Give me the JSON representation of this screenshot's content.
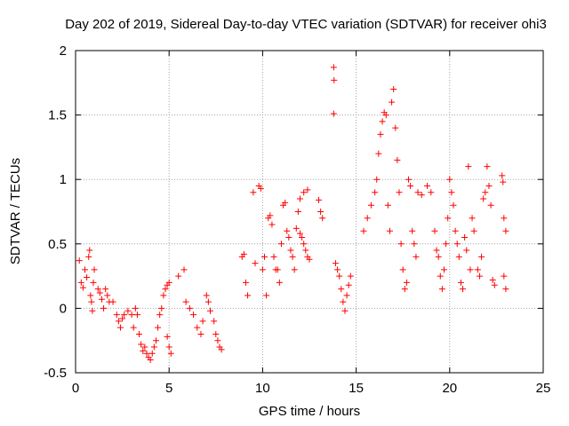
{
  "chart_data": {
    "type": "scatter",
    "title": "Day 202 of 2019, Sidereal Day-to-day VTEC variation (SDTVAR) for receiver ohi3",
    "xlabel": "GPS time / hours",
    "ylabel": "SDTVAR / TECUs",
    "xlim": [
      0,
      25
    ],
    "ylim": [
      -0.5,
      2
    ],
    "xticks": [
      0,
      5,
      10,
      15,
      20,
      25
    ],
    "xtick_labels": [
      "0",
      "5",
      "10",
      "15",
      "20",
      "25"
    ],
    "yticks": [
      -0.5,
      0,
      0.5,
      1,
      1.5,
      2
    ],
    "ytick_labels": [
      "-0.5",
      "0",
      "0.5",
      "1",
      "1.5",
      "2"
    ],
    "grid": true,
    "marker": "plus",
    "color": "#ff0000",
    "series": [
      {
        "name": "SDTVAR",
        "points": [
          [
            0.2,
            0.37
          ],
          [
            0.3,
            0.2
          ],
          [
            0.4,
            0.16
          ],
          [
            0.5,
            0.3
          ],
          [
            0.6,
            0.24
          ],
          [
            0.7,
            0.4
          ],
          [
            0.75,
            0.45
          ],
          [
            0.8,
            0.1
          ],
          [
            0.85,
            0.05
          ],
          [
            0.9,
            -0.02
          ],
          [
            0.95,
            0.2
          ],
          [
            1.0,
            0.3
          ],
          [
            1.2,
            0.15
          ],
          [
            1.3,
            0.12
          ],
          [
            1.4,
            0.07
          ],
          [
            1.5,
            0.0
          ],
          [
            1.6,
            0.15
          ],
          [
            1.7,
            0.1
          ],
          [
            1.8,
            0.05
          ],
          [
            2.0,
            0.05
          ],
          [
            2.2,
            -0.05
          ],
          [
            2.3,
            -0.1
          ],
          [
            2.4,
            -0.15
          ],
          [
            2.5,
            -0.08
          ],
          [
            2.6,
            -0.05
          ],
          [
            2.8,
            -0.02
          ],
          [
            3.0,
            -0.05
          ],
          [
            3.1,
            -0.15
          ],
          [
            3.2,
            0.0
          ],
          [
            3.3,
            -0.05
          ],
          [
            3.4,
            -0.2
          ],
          [
            3.5,
            -0.28
          ],
          [
            3.6,
            -0.33
          ],
          [
            3.7,
            -0.3
          ],
          [
            3.8,
            -0.35
          ],
          [
            3.9,
            -0.38
          ],
          [
            4.0,
            -0.4
          ],
          [
            4.1,
            -0.35
          ],
          [
            4.2,
            -0.3
          ],
          [
            4.3,
            -0.25
          ],
          [
            4.4,
            -0.15
          ],
          [
            4.5,
            -0.05
          ],
          [
            4.6,
            0.0
          ],
          [
            4.7,
            0.1
          ],
          [
            4.8,
            0.15
          ],
          [
            4.9,
            0.18
          ],
          [
            5.0,
            0.2
          ],
          [
            5.1,
            -0.35
          ],
          [
            5.0,
            -0.3
          ],
          [
            4.9,
            -0.22
          ],
          [
            5.5,
            0.25
          ],
          [
            5.8,
            0.3
          ],
          [
            5.9,
            0.05
          ],
          [
            6.1,
            0.0
          ],
          [
            6.3,
            -0.05
          ],
          [
            6.5,
            -0.15
          ],
          [
            6.7,
            -0.2
          ],
          [
            6.8,
            -0.1
          ],
          [
            7.0,
            0.1
          ],
          [
            7.1,
            0.05
          ],
          [
            7.2,
            -0.02
          ],
          [
            7.4,
            -0.1
          ],
          [
            7.5,
            -0.2
          ],
          [
            7.6,
            -0.25
          ],
          [
            7.7,
            -0.3
          ],
          [
            7.8,
            -0.32
          ],
          [
            8.9,
            0.4
          ],
          [
            9.0,
            0.42
          ],
          [
            9.1,
            0.2
          ],
          [
            9.2,
            0.1
          ],
          [
            9.5,
            0.9
          ],
          [
            9.6,
            0.35
          ],
          [
            9.8,
            0.95
          ],
          [
            9.9,
            0.93
          ],
          [
            10.0,
            0.3
          ],
          [
            10.1,
            0.4
          ],
          [
            10.2,
            0.1
          ],
          [
            10.3,
            0.7
          ],
          [
            10.4,
            0.72
          ],
          [
            10.5,
            0.65
          ],
          [
            10.6,
            0.4
          ],
          [
            10.7,
            0.3
          ],
          [
            10.8,
            0.3
          ],
          [
            10.9,
            0.2
          ],
          [
            11.0,
            0.5
          ],
          [
            11.1,
            0.8
          ],
          [
            11.2,
            0.82
          ],
          [
            11.3,
            0.6
          ],
          [
            11.4,
            0.55
          ],
          [
            11.5,
            0.45
          ],
          [
            11.6,
            0.4
          ],
          [
            11.7,
            0.3
          ],
          [
            11.8,
            0.62
          ],
          [
            11.9,
            0.75
          ],
          [
            12.0,
            0.58
          ],
          [
            12.1,
            0.55
          ],
          [
            12.2,
            0.5
          ],
          [
            12.3,
            0.45
          ],
          [
            12.4,
            0.4
          ],
          [
            12.5,
            0.38
          ],
          [
            12.0,
            0.85
          ],
          [
            12.2,
            0.9
          ],
          [
            12.4,
            0.92
          ],
          [
            13.0,
            0.84
          ],
          [
            13.1,
            0.75
          ],
          [
            13.2,
            0.7
          ],
          [
            13.8,
            1.87
          ],
          [
            13.82,
            1.77
          ],
          [
            13.8,
            1.51
          ],
          [
            13.9,
            0.35
          ],
          [
            14.0,
            0.3
          ],
          [
            14.1,
            0.25
          ],
          [
            14.2,
            0.15
          ],
          [
            14.3,
            0.05
          ],
          [
            14.4,
            -0.02
          ],
          [
            14.5,
            0.1
          ],
          [
            14.6,
            0.18
          ],
          [
            14.7,
            0.25
          ],
          [
            15.4,
            0.6
          ],
          [
            15.6,
            0.7
          ],
          [
            15.8,
            0.8
          ],
          [
            16.0,
            0.9
          ],
          [
            16.1,
            1.0
          ],
          [
            16.2,
            1.2
          ],
          [
            16.3,
            1.35
          ],
          [
            16.4,
            1.45
          ],
          [
            16.5,
            1.52
          ],
          [
            16.6,
            1.5
          ],
          [
            16.7,
            0.8
          ],
          [
            16.8,
            0.6
          ],
          [
            16.9,
            1.6
          ],
          [
            17.0,
            1.7
          ],
          [
            17.1,
            1.4
          ],
          [
            17.2,
            1.15
          ],
          [
            17.3,
            0.9
          ],
          [
            17.4,
            0.5
          ],
          [
            17.5,
            0.3
          ],
          [
            17.6,
            0.15
          ],
          [
            17.7,
            0.2
          ],
          [
            17.8,
            1.0
          ],
          [
            17.9,
            0.95
          ],
          [
            18.0,
            0.6
          ],
          [
            18.1,
            0.5
          ],
          [
            18.2,
            0.4
          ],
          [
            18.3,
            0.9
          ],
          [
            18.5,
            0.88
          ],
          [
            18.8,
            0.95
          ],
          [
            19.0,
            0.9
          ],
          [
            19.2,
            0.6
          ],
          [
            19.3,
            0.45
          ],
          [
            19.4,
            0.4
          ],
          [
            19.5,
            0.25
          ],
          [
            19.6,
            0.15
          ],
          [
            19.7,
            0.3
          ],
          [
            19.8,
            0.5
          ],
          [
            19.9,
            0.7
          ],
          [
            20.0,
            1.0
          ],
          [
            20.1,
            0.9
          ],
          [
            20.2,
            0.8
          ],
          [
            20.3,
            0.6
          ],
          [
            20.4,
            0.5
          ],
          [
            20.5,
            0.4
          ],
          [
            20.6,
            0.2
          ],
          [
            20.7,
            0.15
          ],
          [
            20.8,
            0.55
          ],
          [
            20.9,
            0.45
          ],
          [
            21.0,
            1.1
          ],
          [
            21.1,
            0.3
          ],
          [
            21.2,
            0.7
          ],
          [
            21.3,
            0.6
          ],
          [
            21.5,
            0.3
          ],
          [
            21.6,
            0.25
          ],
          [
            21.7,
            0.4
          ],
          [
            21.8,
            0.85
          ],
          [
            21.9,
            0.9
          ],
          [
            22.0,
            1.1
          ],
          [
            22.1,
            0.95
          ],
          [
            22.2,
            0.8
          ],
          [
            22.3,
            0.22
          ],
          [
            22.4,
            0.18
          ],
          [
            22.8,
            1.03
          ],
          [
            22.85,
            0.98
          ],
          [
            22.9,
            0.7
          ],
          [
            23.0,
            0.6
          ],
          [
            22.9,
            0.25
          ],
          [
            23.0,
            0.15
          ]
        ]
      }
    ]
  }
}
